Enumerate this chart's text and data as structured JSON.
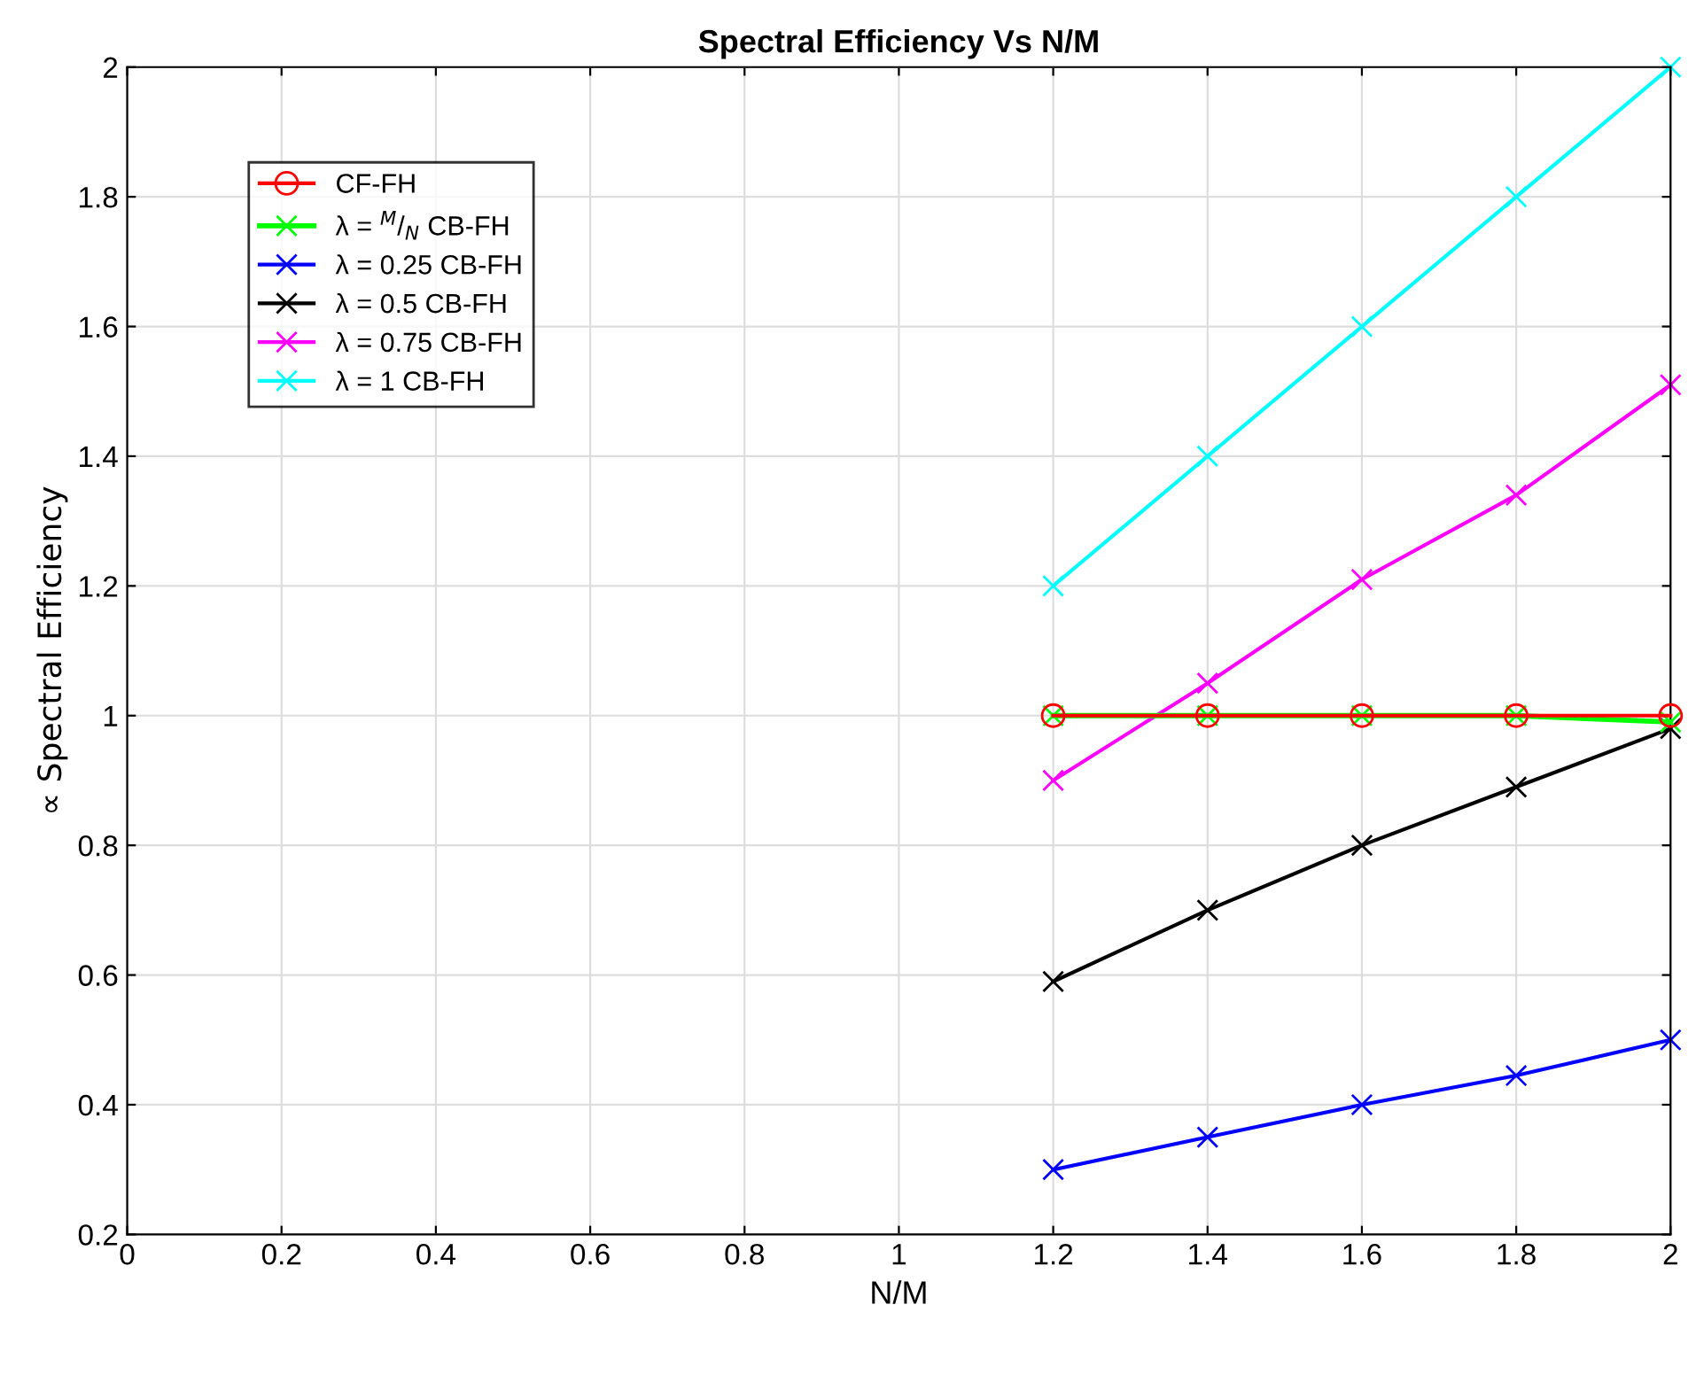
{
  "chart_data": {
    "type": "line",
    "title": "Spectral Efficiency Vs N/M",
    "xlabel": "N/M",
    "ylabel": "∝ Spectral Efficiency",
    "x": [
      1.2,
      1.4,
      1.6,
      1.8,
      2
    ],
    "series": [
      {
        "name": "CF-FH",
        "color": "#ff0000",
        "marker": "circle",
        "values": [
          1,
          1,
          1,
          1,
          1
        ]
      },
      {
        "name": "λ = $^{M}$/$_{N}$ CB-FH",
        "color": "#00ff00",
        "marker": "cross",
        "values": [
          1,
          1,
          1,
          1,
          0.99
        ]
      },
      {
        "name": "λ = 0.25 CB-FH",
        "color": "#0000ff",
        "marker": "cross",
        "values": [
          0.3,
          0.35,
          0.4,
          0.445,
          0.5
        ]
      },
      {
        "name": "λ = 0.5 CB-FH",
        "color": "#000000",
        "marker": "cross",
        "values": [
          0.59,
          0.7,
          0.8,
          0.89,
          0.98
        ]
      },
      {
        "name": "λ = 0.75 CB-FH",
        "color": "#ff00ff",
        "marker": "cross",
        "values": [
          0.9,
          1.05,
          1.21,
          1.34,
          1.51
        ]
      },
      {
        "name": "λ = 1 CB-FH",
        "color": "#00ffff",
        "marker": "cross",
        "values": [
          1.2,
          1.4,
          1.6,
          1.8,
          2
        ]
      }
    ],
    "xlim": [
      0,
      2
    ],
    "xticks": [
      0,
      0.2,
      0.4,
      0.6,
      0.8,
      1,
      1.2,
      1.4,
      1.6,
      1.8,
      2
    ],
    "ylim": [
      0.2,
      2
    ],
    "yticks": [
      0.2,
      0.4,
      0.6,
      0.8,
      1,
      1.2,
      1.4,
      1.6,
      1.8,
      2
    ],
    "grid": true,
    "legend": "top left"
  }
}
